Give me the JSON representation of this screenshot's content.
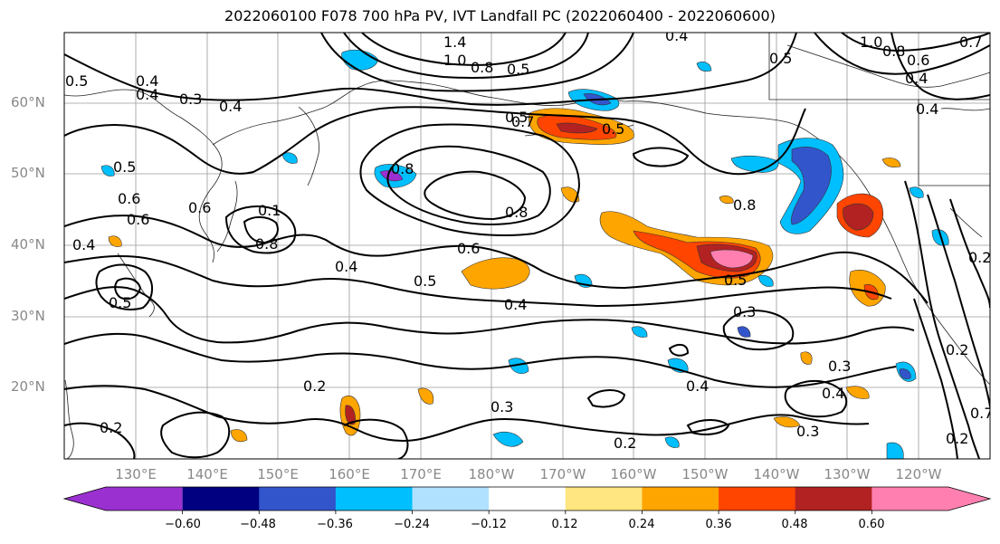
{
  "title": "2022060100 F078 700 hPa PV, IVT Landfall PC (2022060400 - 2022060600)",
  "lat_labels": [
    "60°N",
    "50°N",
    "40°N",
    "30°N",
    "20°N"
  ],
  "lon_labels": [
    "130°E",
    "140°E",
    "150°E",
    "160°E",
    "170°E",
    "180°W",
    "170°W",
    "160°W",
    "150°W",
    "140°W",
    "130°W",
    "120°W"
  ],
  "colorbar": {
    "ticks": [
      "−0.60",
      "−0.48",
      "−0.36",
      "−0.24",
      "−0.12",
      "0.12",
      "0.24",
      "0.36",
      "0.48",
      "0.60"
    ],
    "colors": [
      "#9b30d0",
      "#000080",
      "#3355cc",
      "#00bfff",
      "#b0e2ff",
      "#ffffff",
      "#ffe680",
      "#ffa500",
      "#ff4500",
      "#b22222",
      "#ff80b0"
    ]
  },
  "contour_labels": [
    {
      "text": "1.4"
    },
    {
      "text": "1.0"
    },
    {
      "text": "0.8"
    },
    {
      "text": "0.5"
    },
    {
      "text": "0.4"
    },
    {
      "text": "1.0"
    },
    {
      "text": "0.8"
    },
    {
      "text": "0.7"
    },
    {
      "text": "0.6"
    },
    {
      "text": "0.4"
    },
    {
      "text": "0.5"
    },
    {
      "text": "0.3"
    },
    {
      "text": "0.4"
    },
    {
      "text": "0.4"
    },
    {
      "text": "0.5"
    },
    {
      "text": "0.6"
    },
    {
      "text": "0.7"
    },
    {
      "text": "0.8"
    },
    {
      "text": "0.8"
    },
    {
      "text": "0.6"
    },
    {
      "text": "0.4"
    },
    {
      "text": "0.4"
    },
    {
      "text": "0.5"
    },
    {
      "text": "0.8"
    },
    {
      "text": "0.8"
    },
    {
      "text": "0.6"
    },
    {
      "text": "0.5"
    },
    {
      "text": "0.4"
    },
    {
      "text": "0.5"
    },
    {
      "text": "0.5"
    },
    {
      "text": "0.3"
    },
    {
      "text": "0.3"
    },
    {
      "text": "0.2"
    },
    {
      "text": "0.3"
    },
    {
      "text": "0.4"
    },
    {
      "text": "0.4"
    },
    {
      "text": "0.3"
    },
    {
      "text": "0.2"
    },
    {
      "text": "0.2"
    },
    {
      "text": "0.2"
    },
    {
      "text": "0.2"
    },
    {
      "text": "0.2"
    },
    {
      "text": "0.7"
    },
    {
      "text": "0.5"
    },
    {
      "text": "0.4"
    },
    {
      "text": "0.1"
    },
    {
      "text": "0.6"
    },
    {
      "text": "0.5"
    },
    {
      "text": "0.4"
    }
  ]
}
